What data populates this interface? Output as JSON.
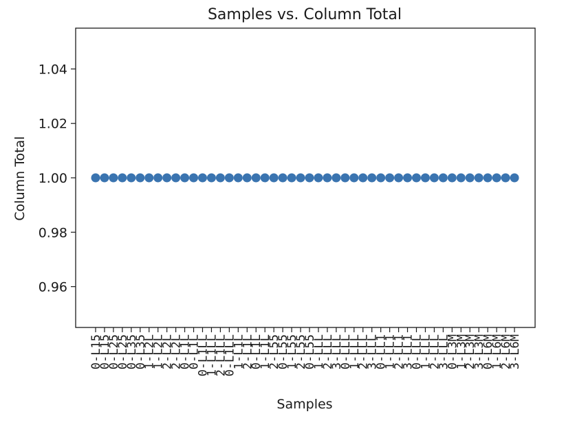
{
  "chart_data": {
    "type": "scatter",
    "title": "Samples vs. Column Total",
    "xlabel": "Samples",
    "ylabel": "Column Total",
    "ylim": [
      0.945,
      1.055
    ],
    "yticks": [
      "0.96",
      "0.98",
      "1.00",
      "1.02",
      "1.04"
    ],
    "grid": false,
    "legend": "none",
    "marker_color": "#3a74b0",
    "categories": [
      "0-L15",
      "0-L15",
      "0-L25",
      "0-L25",
      "0-L35",
      "0-L35",
      "1-L2L",
      "1-L2L",
      "2-L2L",
      "2-L2L",
      "0-L1L",
      "0-L1L",
      "0-L1LL",
      "1-L1LL",
      "2-L1LL",
      "0-L1LL",
      "1-L1L",
      "2-L1L",
      "0-L1L",
      "1-L1L",
      "2-L55",
      "0-L55",
      "1-L55",
      "2-L55",
      "0-L55",
      "1-LLL",
      "2-LLL",
      "3-LLL",
      "0-LLL",
      "1-LLL",
      "2-LLL",
      "3-LLL",
      "0-LL1",
      "1-LL1",
      "2-LL1",
      "3-LL1",
      "0-LLL",
      "1-LLL",
      "2-LLL",
      "3-LLL",
      "0-L3M",
      "1-L3M",
      "2-L3M",
      "3-L3M",
      "0-L6M",
      "1-L6M",
      "2-L6M",
      "3-L6M"
    ],
    "series": [
      {
        "values": [
          1,
          1,
          1,
          1,
          1,
          1,
          1,
          1,
          1,
          1,
          1,
          1,
          1,
          1,
          1,
          1,
          1,
          1,
          1,
          1,
          1,
          1,
          1,
          1,
          1,
          1,
          1,
          1,
          1,
          1,
          1,
          1,
          1,
          1,
          1,
          1,
          1,
          1,
          1,
          1,
          1,
          1,
          1,
          1,
          1,
          1,
          1,
          1
        ]
      }
    ]
  }
}
